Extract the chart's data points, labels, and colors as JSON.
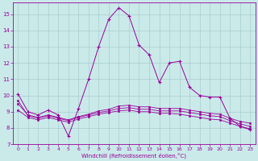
{
  "xlabel": "Windchill (Refroidissement éolien,°C)",
  "bg_color": "#caeaea",
  "grid_color": "#aacccc",
  "line_color": "#990099",
  "xlim": [
    -0.5,
    23.5
  ],
  "ylim": [
    7,
    15.7
  ],
  "yticks": [
    7,
    8,
    9,
    10,
    11,
    12,
    13,
    14,
    15
  ],
  "xticks": [
    0,
    1,
    2,
    3,
    4,
    5,
    6,
    7,
    8,
    9,
    10,
    11,
    12,
    13,
    14,
    15,
    16,
    17,
    18,
    19,
    20,
    21,
    22,
    23
  ],
  "series1_x": [
    0,
    1,
    2,
    3,
    4,
    5,
    6,
    7,
    8,
    9,
    10,
    11,
    12,
    13,
    14,
    15,
    16,
    17,
    18,
    19,
    20,
    21,
    22,
    23
  ],
  "series1_y": [
    10.1,
    9.0,
    8.8,
    9.1,
    8.8,
    7.5,
    9.2,
    11.0,
    13.0,
    14.7,
    15.4,
    14.9,
    13.1,
    12.5,
    10.8,
    12.0,
    12.1,
    10.5,
    10.0,
    9.9,
    9.9,
    8.6,
    8.1,
    7.9
  ],
  "series2_x": [
    0,
    1,
    2,
    3,
    4,
    5,
    6,
    7,
    8,
    9,
    10,
    11,
    12,
    13,
    14,
    15,
    16,
    17,
    18,
    19,
    20,
    21,
    22,
    23
  ],
  "series2_y": [
    9.5,
    8.8,
    8.65,
    8.8,
    8.65,
    8.5,
    8.7,
    8.85,
    9.05,
    9.15,
    9.35,
    9.4,
    9.3,
    9.3,
    9.2,
    9.2,
    9.2,
    9.1,
    9.0,
    8.9,
    8.85,
    8.6,
    8.4,
    8.3
  ],
  "series3_x": [
    0,
    1,
    2,
    3,
    4,
    5,
    6,
    7,
    8,
    9,
    10,
    11,
    12,
    13,
    14,
    15,
    16,
    17,
    18,
    19,
    20,
    21,
    22,
    23
  ],
  "series3_y": [
    9.7,
    8.75,
    8.6,
    8.75,
    8.6,
    8.45,
    8.65,
    8.8,
    8.95,
    9.05,
    9.2,
    9.25,
    9.15,
    9.15,
    9.05,
    9.05,
    9.05,
    8.95,
    8.85,
    8.75,
    8.7,
    8.45,
    8.25,
    8.1
  ],
  "series4_x": [
    0,
    1,
    2,
    3,
    4,
    5,
    6,
    7,
    8,
    9,
    10,
    11,
    12,
    13,
    14,
    15,
    16,
    17,
    18,
    19,
    20,
    21,
    22,
    23
  ],
  "series4_y": [
    9.1,
    8.65,
    8.5,
    8.65,
    8.5,
    8.35,
    8.55,
    8.7,
    8.85,
    8.95,
    9.05,
    9.1,
    9.0,
    9.0,
    8.9,
    8.9,
    8.85,
    8.75,
    8.65,
    8.55,
    8.5,
    8.3,
    8.1,
    7.95
  ]
}
